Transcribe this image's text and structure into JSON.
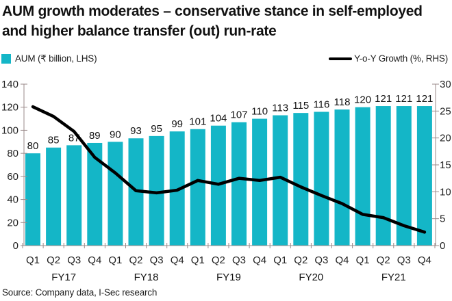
{
  "colors": {
    "bar": "#14b6c7",
    "line": "#000000",
    "axis": "#9a8a8a"
  },
  "chart_data": {
    "type": "bar+line",
    "title": "AUM growth moderates – conservative stance in self-employed and higher balance transfer (out) run-rate",
    "categories": [
      "Q1",
      "Q2",
      "Q3",
      "Q4",
      "Q1",
      "Q2",
      "Q3",
      "Q4",
      "Q1",
      "Q2",
      "Q3",
      "Q4",
      "Q1",
      "Q2",
      "Q3",
      "Q4",
      "Q1",
      "Q2",
      "Q3",
      "Q4"
    ],
    "fiscal_years": [
      {
        "label": "FY17",
        "start": 0,
        "end": 3
      },
      {
        "label": "FY18",
        "start": 4,
        "end": 7
      },
      {
        "label": "FY19",
        "start": 8,
        "end": 11
      },
      {
        "label": "FY20",
        "start": 12,
        "end": 15
      },
      {
        "label": "FY21",
        "start": 16,
        "end": 19
      }
    ],
    "series": [
      {
        "name": "AUM (₹ billion, LHS)",
        "type": "bar",
        "axis": "left",
        "values": [
          80,
          85,
          87,
          89,
          90,
          93,
          95,
          99,
          101,
          104,
          107,
          110,
          113,
          115,
          116,
          118,
          120,
          121,
          121,
          121
        ]
      },
      {
        "name": "Y-o-Y Growth (%, RHS)",
        "type": "line",
        "axis": "right",
        "values": [
          25.8,
          24.0,
          21.2,
          16.4,
          13.5,
          10.2,
          9.8,
          10.3,
          12.1,
          11.4,
          12.5,
          12.1,
          12.7,
          10.9,
          9.3,
          7.8,
          5.8,
          5.2,
          3.7,
          2.5
        ]
      }
    ],
    "y_left": {
      "min": 0,
      "max": 140,
      "ticks": [
        0,
        20,
        40,
        60,
        80,
        100,
        120,
        140
      ]
    },
    "y_right": {
      "min": 0,
      "max": 30,
      "ticks": [
        0,
        5,
        10,
        15,
        20,
        25,
        30
      ]
    },
    "legend": {
      "placement": "top"
    },
    "grid": false,
    "source": "Source: Company data, I-Sec research"
  }
}
